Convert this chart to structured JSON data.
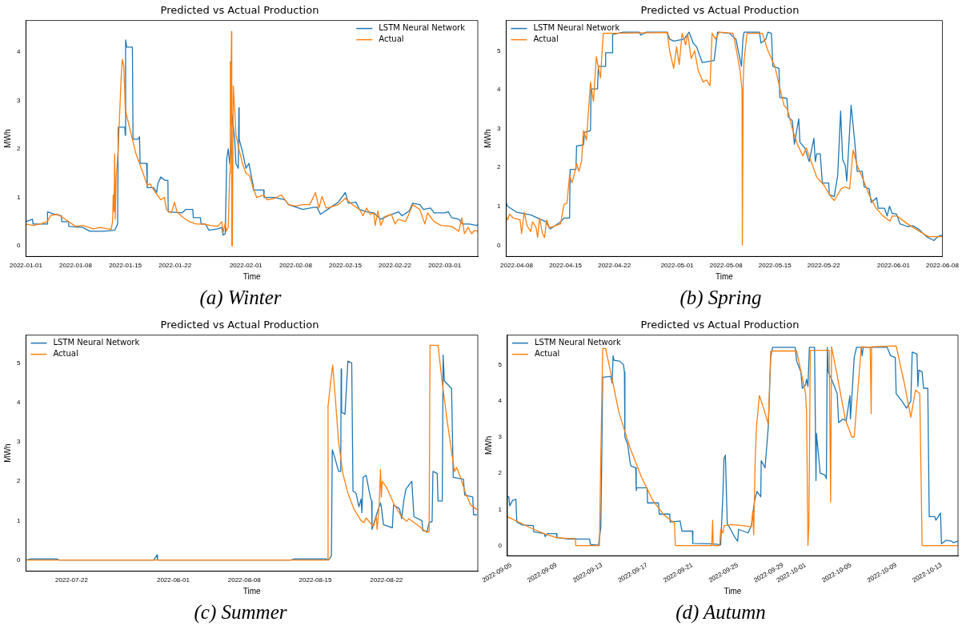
{
  "chart_data": [
    {
      "type": "line",
      "title": "Predicted vs Actual Production",
      "xlabel": "Time",
      "ylabel": "MWh",
      "legend": "top right",
      "annotations": [
        "(a) Winter"
      ],
      "xlim": [
        "2022-01-01",
        "2022-03-05T16:00"
      ],
      "ylim": [
        -0.22,
        4.65
      ],
      "yticks": [
        0,
        1,
        2,
        3,
        4
      ],
      "xticks": [
        "2022-01-01",
        "2022-01-08",
        "2022-01-15",
        "2022-01-22",
        "2022-02-01",
        "2022-02-08",
        "2022-02-15",
        "2022-02-22",
        "2022-03-01"
      ],
      "series": [
        {
          "name": "LSTM Neural Network",
          "color": "#1f77b4",
          "x": [
            "2022-01-01",
            "2022-01-01T22:00",
            "2022-01-02",
            "2022-01-04",
            "2022-01-04T01:00",
            "2022-01-05",
            "2022-01-06",
            "2022-01-06T01:00",
            "2022-01-07",
            "2022-01-07T01:00",
            "2022-01-09",
            "2022-01-10",
            "2022-01-12",
            "2022-01-13T12:00",
            "2022-01-13T22:00",
            "2022-01-14",
            "2022-01-14T22:00",
            "2022-01-15",
            "2022-01-15T01:00",
            "2022-01-15T05:00",
            "2022-01-16",
            "2022-01-16T02:00",
            "2022-01-16T19:00",
            "2022-01-17",
            "2022-01-17T02:00",
            "2022-01-18",
            "2022-01-18T02:00",
            "2022-01-19",
            "2022-01-19T10:00",
            "2022-01-19T14:00",
            "2022-01-20",
            "2022-01-20T14:00",
            "2022-01-21",
            "2022-01-21T01:00",
            "2022-01-23",
            "2022-01-23T12:00",
            "2022-01-24T12:00",
            "2022-01-24T14:00",
            "2022-01-25T14:00",
            "2022-01-25T16:00",
            "2022-01-26T07:00",
            "2022-01-26T19:00",
            "2022-01-28",
            "2022-01-28T14:00",
            "2022-01-28T19:00",
            "2022-01-29T02:00",
            "2022-01-29T07:00",
            "2022-01-29T12:00",
            "2022-01-29T17:00",
            "2022-01-29T22:00",
            "2022-01-30T01:00",
            "2022-01-30T10:00",
            "2022-01-30T14:00",
            "2022-01-30T22:00",
            "2022-01-31",
            "2022-01-31T01:00",
            "2022-01-31T12:00",
            "2022-02-01",
            "2022-02-01T10:00",
            "2022-02-02",
            "2022-02-02T01:00",
            "2022-02-03T12:00",
            "2022-02-03T13:00",
            "2022-02-05",
            "2022-02-06T12:00",
            "2022-02-07",
            "2022-02-08",
            "2022-02-09",
            "2022-02-10",
            "2022-02-11",
            "2022-02-11T12:00",
            "2022-02-13",
            "2022-02-14",
            "2022-02-15",
            "2022-02-15T10:00",
            "2022-02-16T12:00",
            "2022-02-17",
            "2022-02-18",
            "2022-02-19",
            "2022-02-20",
            "2022-02-21",
            "2022-02-22T12:00",
            "2022-02-23",
            "2022-02-24",
            "2022-02-24T12:00",
            "2022-02-25T12:00",
            "2022-02-26",
            "2022-02-27",
            "2022-02-27T12:00",
            "2022-03-01",
            "2022-03-01T12:00",
            "2022-03-02",
            "2022-03-03",
            "2022-03-03T12:00",
            "2022-03-04T12:00",
            "2022-03-05T12:00",
            "2022-03-05T16:00"
          ],
          "values": [
            0.5,
            0.55,
            0.45,
            0.45,
            0.7,
            0.65,
            0.62,
            0.5,
            0.5,
            0.4,
            0.38,
            0.3,
            0.3,
            0.32,
            0.45,
            2.45,
            2.45,
            2.28,
            4.25,
            4.1,
            4.1,
            2.2,
            2.2,
            2.25,
            1.7,
            1.7,
            1.2,
            1.2,
            1.1,
            1.28,
            1.42,
            1.35,
            1.35,
            0.7,
            0.68,
            0.75,
            0.75,
            0.58,
            0.58,
            0.45,
            0.45,
            0.32,
            0.35,
            0.38,
            0.22,
            0.25,
            1.8,
            2.0,
            1.7,
            2.0,
            2.7,
            2.2,
            1.7,
            1.6,
            2.85,
            2.2,
            1.95,
            1.6,
            1.7,
            1.25,
            1.15,
            1.15,
            1.0,
            1.0,
            0.95,
            0.85,
            0.8,
            0.75,
            0.78,
            0.8,
            0.65,
            0.8,
            0.9,
            1.1,
            0.88,
            0.9,
            0.75,
            0.7,
            0.68,
            0.55,
            0.62,
            0.7,
            0.62,
            0.72,
            0.88,
            0.85,
            0.75,
            0.78,
            0.68,
            0.68,
            0.7,
            0.58,
            0.55,
            0.45,
            0.45,
            0.42,
            0.44
          ]
        },
        {
          "name": "Actual",
          "color": "#ff7f0e",
          "x": [
            "2022-01-01",
            "2022-01-02",
            "2022-01-03",
            "2022-01-04",
            "2022-01-04T12:00",
            "2022-01-05T12:00",
            "2022-01-07",
            "2022-01-08",
            "2022-01-09",
            "2022-01-10T12:00",
            "2022-01-11T12:00",
            "2022-01-12T12:00",
            "2022-01-13",
            "2022-01-13T05:00",
            "2022-01-13T07:00",
            "2022-01-13T10:00",
            "2022-01-13T12:00",
            "2022-01-13T14:00",
            "2022-01-13T17:00",
            "2022-01-14",
            "2022-01-14T10:00",
            "2022-01-14T14:00",
            "2022-01-14T19:00",
            "2022-01-15",
            "2022-01-15T12:00",
            "2022-01-16T12:00",
            "2022-01-17T12:00",
            "2022-01-18T02:00",
            "2022-01-18T12:00",
            "2022-01-19",
            "2022-01-20",
            "2022-01-20T12:00",
            "2022-01-20T19:00",
            "2022-01-21T12:00",
            "2022-01-21T22:00",
            "2022-01-22T07:00",
            "2022-01-23",
            "2022-01-24",
            "2022-01-25",
            "2022-01-26",
            "2022-01-27",
            "2022-01-28",
            "2022-01-28T14:00",
            "2022-01-28T19:00",
            "2022-01-29T02:00",
            "2022-01-29T05:00",
            "2022-01-29T12:00",
            "2022-01-29T17:00",
            "2022-01-29T19:00",
            "2022-01-29T20:00",
            "2022-01-29T23:00",
            "2022-01-30",
            "2022-01-30T02:00",
            "2022-01-30T05:00",
            "2022-01-30T10:00",
            "2022-01-30T14:00",
            "2022-01-31",
            "2022-01-31T12:00",
            "2022-02-01",
            "2022-02-01T12:00",
            "2022-02-02",
            "2022-02-02T12:00",
            "2022-02-03T12:00",
            "2022-02-04",
            "2022-02-05",
            "2022-02-06",
            "2022-02-07",
            "2022-02-08",
            "2022-02-09",
            "2022-02-10",
            "2022-02-10T19:00",
            "2022-02-11T07:00",
            "2022-02-11T17:00",
            "2022-02-12T07:00",
            "2022-02-13",
            "2022-02-14",
            "2022-02-15",
            "2022-02-16",
            "2022-02-17",
            "2022-02-17T12:00",
            "2022-02-18",
            "2022-02-18T12:00",
            "2022-02-19",
            "2022-02-19T05:00",
            "2022-02-19T14:00",
            "2022-02-20",
            "2022-02-20T12:00",
            "2022-02-21T12:00",
            "2022-02-22",
            "2022-02-22T12:00",
            "2022-02-23T12:00",
            "2022-02-24T12:00",
            "2022-02-25T12:00",
            "2022-02-26T05:00",
            "2022-02-26T14:00",
            "2022-02-27T12:00",
            "2022-02-28T12:00",
            "2022-03-02",
            "2022-03-03",
            "2022-03-03T10:00",
            "2022-03-03T19:00",
            "2022-03-04T07:00",
            "2022-03-04T19:00",
            "2022-03-05T05:00",
            "2022-03-05T16:00"
          ],
          "values": [
            0.45,
            0.42,
            0.45,
            0.5,
            0.63,
            0.65,
            0.5,
            0.4,
            0.42,
            0.35,
            0.38,
            0.35,
            0.34,
            0.5,
            1.05,
            0.7,
            1.9,
            0.55,
            1.4,
            2.0,
            3.5,
            3.85,
            3.7,
            2.8,
            2.5,
            1.9,
            1.5,
            1.25,
            1.28,
            1.15,
            0.95,
            1.0,
            0.75,
            0.68,
            0.9,
            0.7,
            0.6,
            0.5,
            0.45,
            0.45,
            0.42,
            0.4,
            0.5,
            0.28,
            0.48,
            0.3,
            0.38,
            1.5,
            3.8,
            2.5,
            4.42,
            0,
            0,
            3.3,
            2.8,
            2.3,
            2.0,
            1.7,
            1.5,
            1.45,
            1.2,
            1.0,
            1.05,
            0.95,
            0.98,
            1.05,
            0.85,
            0.82,
            0.85,
            0.85,
            1.1,
            0.78,
            1.02,
            0.78,
            0.8,
            0.85,
            0.98,
            0.85,
            0.75,
            0.62,
            0.78,
            0.65,
            0.68,
            0.42,
            0.72,
            0.42,
            0.6,
            0.65,
            0.45,
            0.55,
            0.5,
            0.85,
            0.75,
            0.45,
            0.68,
            0.5,
            0.42,
            0.4,
            0.3,
            0.58,
            0.25,
            0.38,
            0.25,
            0.32,
            0.3
          ]
        }
      ]
    },
    {
      "type": "line",
      "title": "Predicted vs Actual Production",
      "xlabel": "Time",
      "ylabel": "MWh",
      "legend": "top left",
      "annotations": [
        "(b) Spring"
      ],
      "xlim": [
        "2022-04-06T12:00",
        "2022-06-08"
      ],
      "ylim": [
        -0.29,
        5.78
      ],
      "yticks": [
        0,
        1,
        2,
        3,
        4,
        5
      ],
      "xticks": [
        "2022-04-08",
        "2022-04-15",
        "2022-04-22",
        "2022-05-01",
        "2022-05-08",
        "2022-05-15",
        "2022-05-22",
        "2022-06-01",
        "2022-06-08"
      ],
      "series": [
        {
          "name": "LSTM Neural Network",
          "color": "#1f77b4",
          "x": [
            "2022-04-06T12:00",
            "2022-04-06T17:00",
            "2022-04-08",
            "2022-04-10",
            "2022-04-12T05:00",
            "2022-04-12T19:00",
            "2022-04-14T07:00",
            "2022-04-14T19:00",
            "2022-04-15T14:00",
            "2022-04-15T16:00",
            "2022-04-16T12:00",
            "2022-04-16T14:00",
            "2022-04-17T14:00",
            "2022-04-17T17:00",
            "2022-04-18T14:00",
            "2022-04-18T16:00",
            "2022-04-19T14:00",
            "2022-04-19T17:00",
            "2022-04-20T17:00",
            "2022-04-20T18:00",
            "2022-04-21T17:00",
            "2022-04-21T18:00",
            "2022-04-22T12:00",
            "2022-04-23T07:00",
            "2022-04-25T14:00",
            "2022-04-25T19:00",
            "2022-04-26T14:00",
            "2022-04-29T14:00",
            "2022-04-29T22:00",
            "2022-04-30T12:00",
            "2022-05-02",
            "2022-05-02T17:00",
            "2022-05-03T07:00",
            "2022-05-03T19:00",
            "2022-05-04T14:00",
            "2022-05-06T07:00",
            "2022-05-06T19:00",
            "2022-05-08T12:00",
            "2022-05-09T10:00",
            "2022-05-10T05:00",
            "2022-05-10T10:00",
            "2022-05-10T14:00",
            "2022-05-12T19:00",
            "2022-05-13",
            "2022-05-13T17:00",
            "2022-05-14",
            "2022-05-14T12:00",
            "2022-05-14T17:00",
            "2022-05-15T14:00",
            "2022-05-15T17:00",
            "2022-05-16T17:00",
            "2022-05-16T22:00",
            "2022-05-17T12:00",
            "2022-05-17T19:00",
            "2022-05-18T10:00",
            "2022-05-18T14:00",
            "2022-05-19T07:00",
            "2022-05-19T22:00",
            "2022-05-20T14:00",
            "2022-05-20T19:00",
            "2022-05-21",
            "2022-05-21T12:00",
            "2022-05-21T19:00",
            "2022-05-22T17:00",
            "2022-05-22T19:00",
            "2022-05-23T12:00",
            "2022-05-24",
            "2022-05-24T10:00",
            "2022-05-24T17:00",
            "2022-05-25T02:00",
            "2022-05-25T07:00",
            "2022-05-25T22:00",
            "2022-05-26T10:00",
            "2022-05-26T19:00",
            "2022-05-27T12:00",
            "2022-05-27T19:00",
            "2022-05-28T12:00",
            "2022-05-28T19:00",
            "2022-05-29T14:00",
            "2022-05-29T19:00",
            "2022-05-30T17:00",
            "2022-05-31T02:00",
            "2022-05-31T10:00",
            "2022-05-31T19:00",
            "2022-06-01T10:00",
            "2022-06-01T22:00",
            "2022-06-03",
            "2022-06-03T19:00",
            "2022-06-04T17:00",
            "2022-06-05T17:00",
            "2022-06-06T19:00",
            "2022-06-07T05:00",
            "2022-06-07T17:00",
            "2022-06-08"
          ],
          "values": [
            1.1,
            1.0,
            0.85,
            0.78,
            0.6,
            0.42,
            0.6,
            0.7,
            0.7,
            1.95,
            1.95,
            2.55,
            2.58,
            2.9,
            2.95,
            4.02,
            4.02,
            4.6,
            4.6,
            4.95,
            4.95,
            5.42,
            5.45,
            5.48,
            5.48,
            5.4,
            5.48,
            5.48,
            5.3,
            5.25,
            5.3,
            5.48,
            5.2,
            5.1,
            4.7,
            4.75,
            5.48,
            5.45,
            5.3,
            4.6,
            5.3,
            5.48,
            5.48,
            5.2,
            5.3,
            5.48,
            5.45,
            4.6,
            4.55,
            3.8,
            3.78,
            3.3,
            3.2,
            2.6,
            3.25,
            2.65,
            2.5,
            2.15,
            2.75,
            2.15,
            2.35,
            2.35,
            1.6,
            1.6,
            1.3,
            1.25,
            1.8,
            3.45,
            2.2,
            2.05,
            1.65,
            3.6,
            2.7,
            1.9,
            1.9,
            1.5,
            1.45,
            1.1,
            1.22,
            0.95,
            0.95,
            0.75,
            1.0,
            0.82,
            0.8,
            0.55,
            0.48,
            0.5,
            0.4,
            0.22,
            0.12,
            0.2,
            0.25,
            0.25
          ]
        },
        {
          "name": "Actual",
          "color": "#ff7f0e",
          "x": [
            "2022-04-06T12:00",
            "2022-04-06T17:00",
            "2022-04-07",
            "2022-04-07T12:00",
            "2022-04-08T12:00",
            "2022-04-08T17:00",
            "2022-04-09T02:00",
            "2022-04-09T12:00",
            "2022-04-10",
            "2022-04-10T07:00",
            "2022-04-10T19:00",
            "2022-04-11",
            "2022-04-11T07:00",
            "2022-04-11T17:00",
            "2022-04-12",
            "2022-04-12T07:00",
            "2022-04-12T17:00",
            "2022-04-13T12:00",
            "2022-04-14T07:00",
            "2022-04-14T19:00",
            "2022-04-15T05:00",
            "2022-04-15T14:00",
            "2022-04-15T22:00",
            "2022-04-16T07:00",
            "2022-04-16T14:00",
            "2022-04-16T22:00",
            "2022-04-17T07:00",
            "2022-04-17T14:00",
            "2022-04-18",
            "2022-04-18T14:00",
            "2022-04-19",
            "2022-04-19T10:00",
            "2022-04-20",
            "2022-04-20T10:00",
            "2022-04-29T14:00",
            "2022-04-29T22:00",
            "2022-04-30T12:00",
            "2022-04-30T22:00",
            "2022-05-01T07:00",
            "2022-05-01T17:00",
            "2022-05-02T05:00",
            "2022-05-02T12:00",
            "2022-05-03",
            "2022-05-03T12:00",
            "2022-05-04",
            "2022-05-04T17:00",
            "2022-05-05T05:00",
            "2022-05-05T17:00",
            "2022-05-06",
            "2022-05-06T12:00",
            "2022-05-07",
            "2022-05-09",
            "2022-05-09T12:00",
            "2022-05-10",
            "2022-05-10T07:00",
            "2022-05-10T08:00",
            "2022-05-10T11:00",
            "2022-05-10T14:00",
            "2022-05-11",
            "2022-05-13T05:00",
            "2022-05-14",
            "2022-05-15",
            "2022-05-15T12:00",
            "2022-05-16T07:00",
            "2022-05-16T19:00",
            "2022-05-17T12:00",
            "2022-05-18T05:00",
            "2022-05-19",
            "2022-05-19T12:00",
            "2022-05-20T07:00",
            "2022-05-21",
            "2022-05-22",
            "2022-05-23",
            "2022-05-23T12:00",
            "2022-05-24T12:00",
            "2022-05-25",
            "2022-05-25T17:00",
            "2022-05-26T05:00",
            "2022-05-26T19:00",
            "2022-05-27T12:00",
            "2022-05-28T12:00",
            "2022-05-29T12:00",
            "2022-05-30T12:00",
            "2022-05-31T12:00",
            "2022-05-31T19:00",
            "2022-06-01T12:00",
            "2022-06-03",
            "2022-06-04T12:00",
            "2022-06-06",
            "2022-06-08"
          ],
          "values": [
            0.75,
            0.65,
            0.8,
            0.7,
            0.65,
            0.3,
            0.85,
            0.5,
            0.35,
            0.6,
            0.45,
            0.2,
            0.7,
            0.3,
            0.2,
            0.65,
            0.45,
            0.5,
            0.55,
            1.05,
            1.08,
            1.8,
            1.6,
            1.85,
            2.1,
            1.9,
            2.15,
            2.95,
            2.7,
            4.2,
            3.7,
            4.85,
            4.3,
            5.45,
            5.47,
            5.0,
            4.55,
            5.1,
            4.65,
            5.45,
            5.15,
            5.45,
            4.8,
            5.0,
            4.5,
            4.2,
            4.25,
            4.1,
            5.45,
            5.3,
            5.48,
            5.45,
            5.0,
            4.5,
            4.0,
            0,
            4.2,
            4.75,
            5.45,
            5.45,
            5.0,
            4.6,
            4.2,
            3.6,
            3.5,
            3.0,
            2.6,
            2.3,
            2.5,
            2.1,
            1.75,
            1.55,
            1.25,
            1.15,
            1.45,
            1.5,
            1.45,
            2.45,
            2.05,
            1.75,
            1.3,
            0.95,
            0.75,
            0.62,
            0.75,
            0.75,
            0.55,
            0.38,
            0.22,
            0.22
          ]
        }
      ]
    },
    {
      "type": "line",
      "title": "Predicted vs Actual Production",
      "xlabel": "Time",
      "ylabel": "MWh",
      "legend": "top left",
      "annotations": [
        "(c) Summer"
      ],
      "xlim": [
        "2022-07-17T12:00",
        "2022-08-31"
      ],
      "ylim": [
        -0.28,
        5.71
      ],
      "yticks": [
        0,
        1,
        2,
        3,
        4,
        5
      ],
      "xticks": [
        "2022-07-22",
        "2022-08-01",
        "2022-08-08",
        "2022-08-15",
        "2022-08-22"
      ],
      "series": [
        {
          "name": "LSTM Neural Network",
          "color": "#1f77b4",
          "x": [
            "2022-07-17T12:00",
            "2022-07-18",
            "2022-07-20T12:00",
            "2022-07-20T19:00",
            "2022-07-30T02:00",
            "2022-07-30T10:00",
            "2022-07-30T11:00",
            "2022-08-12T14:00",
            "2022-08-13",
            "2022-08-16",
            "2022-08-16T07:00",
            "2022-08-16T14:00",
            "2022-08-16T16:00",
            "2022-08-16T22:00",
            "2022-08-17T07:00",
            "2022-08-17T12:00",
            "2022-08-17T13:00",
            "2022-08-17T14:00",
            "2022-08-17T22:00",
            "2022-08-18T05:00",
            "2022-08-18T14:00",
            "2022-08-18T17:00",
            "2022-08-19",
            "2022-08-19T07:00",
            "2022-08-19T12:00",
            "2022-08-19T14:00",
            "2022-08-19T17:00",
            "2022-08-20",
            "2022-08-20T10:00",
            "2022-08-20T13:00",
            "2022-08-20T14:00",
            "2022-08-21T02:00",
            "2022-08-21T10:00",
            "2022-08-21T12:00",
            "2022-08-21T17:00",
            "2022-08-22T14:00",
            "2022-08-22T17:00",
            "2022-08-23T07:00",
            "2022-08-23T12:00",
            "2022-08-23T17:00",
            "2022-08-23T22:00",
            "2022-08-24T12:00",
            "2022-08-24T17:00",
            "2022-08-25T12:00",
            "2022-08-25T14:00",
            "2022-08-26",
            "2022-08-26T05:00",
            "2022-08-26T12:00",
            "2022-08-26T14:00",
            "2022-08-27",
            "2022-08-27T02:00",
            "2022-08-27T12:00",
            "2022-08-27T14:00",
            "2022-08-27T17:00",
            "2022-08-28T10:00",
            "2022-08-28T14:00",
            "2022-08-29T14:00",
            "2022-08-29T17:00",
            "2022-08-30T12:00",
            "2022-08-30T14:00",
            "2022-08-30T22:00"
          ],
          "values": [
            0,
            0.03,
            0.03,
            0,
            0,
            0.13,
            0,
            0,
            0.03,
            0.03,
            0,
            0.1,
            2.8,
            2.6,
            2.25,
            2.25,
            4.85,
            3.75,
            3.7,
            5.05,
            5.0,
            1.75,
            1.7,
            1.35,
            1.55,
            1.2,
            2.1,
            2.15,
            1.6,
            1.5,
            0.78,
            1.2,
            1.45,
            1.35,
            0.9,
            0.82,
            1.4,
            1.3,
            1.05,
            1.5,
            1.8,
            2.0,
            1.1,
            1.0,
            0.75,
            0.72,
            0.95,
            0.98,
            2.25,
            2.2,
            1.5,
            1.5,
            5.2,
            4.55,
            4.35,
            2.1,
            2.05,
            1.65,
            1.6,
            1.15,
            1.15
          ]
        },
        {
          "name": "Actual",
          "color": "#ff7f0e",
          "x": [
            "2022-07-17T12:00",
            "2022-08-16T05:00",
            "2022-08-16T06:00",
            "2022-08-16T12:00",
            "2022-08-16T17:00",
            "2022-08-17",
            "2022-08-17T07:00",
            "2022-08-17T17:00",
            "2022-08-18T05:00",
            "2022-08-18T19:00",
            "2022-08-19T12:00",
            "2022-08-19T19:00",
            "2022-08-20",
            "2022-08-20T17:00",
            "2022-08-21",
            "2022-08-21T02:00",
            "2022-08-21T07:00",
            "2022-08-21T10:00",
            "2022-08-21T12:00",
            "2022-08-21T14:00",
            "2022-08-22",
            "2022-08-22T19:00",
            "2022-08-23T12:00",
            "2022-08-24",
            "2022-08-24T05:00",
            "2022-08-25",
            "2022-08-26",
            "2022-08-26T05:00",
            "2022-08-26T07:00",
            "2022-08-27T02:00",
            "2022-08-27T12:00",
            "2022-08-28",
            "2022-08-28T12:00",
            "2022-08-28T17:00",
            "2022-08-28T22:00",
            "2022-08-29T07:00",
            "2022-08-29T19:00",
            "2022-08-30T07:00",
            "2022-08-30T22:00"
          ],
          "values": [
            0,
            0,
            3.9,
            4.5,
            4.95,
            4.0,
            3.0,
            2.2,
            1.7,
            1.3,
            1.0,
            0.95,
            1.07,
            0.85,
            1.1,
            0.78,
            1.4,
            2.3,
            1.6,
            2.0,
            1.85,
            1.4,
            1.1,
            0.98,
            1.05,
            0.9,
            0.7,
            0.72,
            5.45,
            5.45,
            4.5,
            3.5,
            2.6,
            2.25,
            2.35,
            2.1,
            1.7,
            1.4,
            1.28
          ]
        }
      ]
    },
    {
      "type": "line",
      "title": "Predicted vs Actual Production",
      "xlabel": "Time",
      "ylabel": "MWh",
      "legend": "top left",
      "annotations": [
        "(d) Autumn"
      ],
      "xlim": [
        "2022-09-04T16:00",
        "2022-10-14T11:00"
      ],
      "ylim": [
        -0.28,
        5.82
      ],
      "yticks": [
        0,
        1,
        2,
        3,
        4,
        5
      ],
      "xticks": [
        "2022-09-05",
        "2022-09-09",
        "2022-09-13",
        "2022-09-17",
        "2022-09-21",
        "2022-09-25",
        "2022-09-29",
        "2022-10-01",
        "2022-10-05",
        "2022-10-09",
        "2022-10-13"
      ],
      "series": [
        {
          "name": "LSTM Neural Network",
          "color": "#1f77b4",
          "x": [
            "2022-09-04T16:00",
            "2022-09-04T19:00",
            "2022-09-04T21:00",
            "2022-09-05T03:00",
            "2022-09-05T10:00",
            "2022-09-05T12:00",
            "2022-09-06",
            "2022-09-06T23:00",
            "2022-09-07",
            "2022-09-07T22:00",
            "2022-09-08",
            "2022-09-08T05:00",
            "2022-09-09",
            "2022-09-09T01:00",
            "2022-09-10T02:00",
            "2022-09-11T22:00",
            "2022-09-12",
            "2022-09-12T17:00",
            "2022-09-12T22:00",
            "2022-09-13",
            "2022-09-13T02:00",
            "2022-09-13T19:00",
            "2022-09-13T22:00",
            "2022-09-14",
            "2022-09-14T02:00",
            "2022-09-14T14:00",
            "2022-09-14T22:00",
            "2022-09-15",
            "2022-09-15T01:00",
            "2022-09-15T07:00",
            "2022-09-15T12:00",
            "2022-09-15T14:00",
            "2022-09-16",
            "2022-09-16T01:00",
            "2022-09-16T02:00",
            "2022-09-17",
            "2022-09-17T01:00",
            "2022-09-18",
            "2022-09-18T02:00",
            "2022-09-19",
            "2022-09-19T01:00",
            "2022-09-19T22:00",
            "2022-09-20T02:00",
            "2022-09-21",
            "2022-09-21T01:00",
            "2022-09-22T19:00",
            "2022-09-23T07:00",
            "2022-09-23T12:00",
            "2022-09-23T17:00",
            "2022-09-23T19:00",
            "2022-09-23T22:00",
            "2022-09-24T02:00",
            "2022-09-24T07:00",
            "2022-09-24T17:00",
            "2022-09-25",
            "2022-09-25T02:00",
            "2022-09-25T22:00",
            "2022-09-26T05:00",
            "2022-09-26T12:00",
            "2022-09-26T17:00",
            "2022-09-27T01:00",
            "2022-09-27T02:00",
            "2022-09-27T10:00",
            "2022-09-27T17:00",
            "2022-09-27T22:00",
            "2022-09-28T02:00",
            "2022-09-30T02:00",
            "2022-09-30T05:00",
            "2022-09-30T14:00",
            "2022-09-30T17:00",
            "2022-10-01",
            "2022-10-01T02:00",
            "2022-10-01T05:00",
            "2022-10-01T08:00",
            "2022-10-01T19:00",
            "2022-10-01T22:00",
            "2022-10-01T23:00",
            "2022-10-02T07:00",
            "2022-10-02T17:00",
            "2022-10-02T20:00",
            "2022-10-02T22:00",
            "2022-10-03",
            "2022-10-03T07:00",
            "2022-10-03T19:00",
            "2022-10-03T22:00",
            "2022-10-04T07:00",
            "2022-10-04T14:00",
            "2022-10-04T22:00",
            "2022-10-04T23:00",
            "2022-10-05T02:00",
            "2022-10-05T07:00",
            "2022-10-05T12:00",
            "2022-10-05T22:00",
            "2022-10-06",
            "2022-10-06T02:00",
            "2022-10-08T05:00",
            "2022-10-08T12:00",
            "2022-10-08T22:00",
            "2022-10-09",
            "2022-10-09T12:00",
            "2022-10-09T22:00",
            "2022-10-10T07:00",
            "2022-10-10T10:00",
            "2022-10-10T20:00",
            "2022-10-10T22:00",
            "2022-10-11",
            "2022-10-11T07:00",
            "2022-10-11T10:00",
            "2022-10-11T19:00",
            "2022-10-11T22:00",
            "2022-10-12T10:00",
            "2022-10-12T12:00",
            "2022-10-12T22:00",
            "2022-10-13",
            "2022-10-13T10:00",
            "2022-10-13T22:00",
            "2022-10-14T01:00",
            "2022-10-14T11:00"
          ],
          "values": [
            1.35,
            1.35,
            1.1,
            1.25,
            1.28,
            0.65,
            0.57,
            0.55,
            0.38,
            0.33,
            0.25,
            0.33,
            0.33,
            0.22,
            0.18,
            0.18,
            0.03,
            0.01,
            0.5,
            2.5,
            4.65,
            4.68,
            4.5,
            5.25,
            5.12,
            5.1,
            5.0,
            4.8,
            3.0,
            2.8,
            2.3,
            2.2,
            2.15,
            1.52,
            1.6,
            1.6,
            1.18,
            1.18,
            0.87,
            0.87,
            0.65,
            0.68,
            0.4,
            0.4,
            0.06,
            0.05,
            0.03,
            0.02,
            1.5,
            2.4,
            2.5,
            0.6,
            0.5,
            0.25,
            0.12,
            0.45,
            0.35,
            0.55,
            1.25,
            1.5,
            1.35,
            2.35,
            2.15,
            3.3,
            5.2,
            5.48,
            5.48,
            5.1,
            4.8,
            4.35,
            4.45,
            4.6,
            4.4,
            5.48,
            5.48,
            1.8,
            3.1,
            2.0,
            1.95,
            1.85,
            5.48,
            4.8,
            4.6,
            4.2,
            3.4,
            3.5,
            3.45,
            4.15,
            3.5,
            4.1,
            5.2,
            5.48,
            5.48,
            5.25,
            5.48,
            5.48,
            5.25,
            5.2,
            4.2,
            4.0,
            3.8,
            4.0,
            5.35,
            5.3,
            4.4,
            4.85,
            4.8,
            4.35,
            4.35,
            0.8,
            0.8,
            0.7,
            0.9,
            0.05,
            0.15,
            0.12,
            0.08,
            0.12
          ]
        },
        {
          "name": "Actual",
          "color": "#ff7f0e",
          "x": [
            "2022-09-04T16:00",
            "2022-09-06",
            "2022-09-07",
            "2022-09-08",
            "2022-09-09",
            "2022-09-10",
            "2022-09-10T16:00",
            "2022-09-10T17:00",
            "2022-09-12T19:00",
            "2022-09-12T22:00",
            "2022-09-13T02:00",
            "2022-09-13T08:00",
            "2022-09-13T22:00",
            "2022-09-14T12:00",
            "2022-09-15T12:00",
            "2022-09-16T12:00",
            "2022-09-17T12:00",
            "2022-09-18T12:00",
            "2022-09-19T10:00",
            "2022-09-19T12:00",
            "2022-09-22T17:00",
            "2022-09-22T19:00",
            "2022-09-22T20:00",
            "2022-09-23T10:00",
            "2022-09-23T12:00",
            "2022-09-23T17:00",
            "2022-09-23T19:00",
            "2022-09-24T12:00",
            "2022-09-25T12:00",
            "2022-09-26T05:00",
            "2022-09-26T08:00",
            "2022-09-26T10:00",
            "2022-09-26T13:00",
            "2022-09-26T16:00",
            "2022-09-26T22:00",
            "2022-09-27T07:00",
            "2022-09-27T17:00",
            "2022-09-27T22:00",
            "2022-09-30T05:00",
            "2022-10-01",
            "2022-10-01T02:00",
            "2022-10-01T05:00",
            "2022-10-01T07:00",
            "2022-10-01T10:00",
            "2022-10-03T02:00",
            "2022-10-03T05:00",
            "2022-10-03T07:00",
            "2022-10-03T19:00",
            "2022-10-04T12:00",
            "2022-10-05T02:00",
            "2022-10-05T07:00",
            "2022-10-05T22:00",
            "2022-10-06T17:00",
            "2022-10-06T19:00",
            "2022-10-06T20:00",
            "2022-10-09",
            "2022-10-09T17:00",
            "2022-10-10T07:00",
            "2022-10-10T17:00",
            "2022-10-11T02:00",
            "2022-10-11T07:00",
            "2022-10-14T11:00"
          ],
          "values": [
            0.8,
            0.6,
            0.45,
            0.32,
            0.22,
            0.2,
            0.2,
            0,
            0,
            2.5,
            5.45,
            5.45,
            4.6,
            3.7,
            2.7,
            1.9,
            1.25,
            0.85,
            0.62,
            0,
            0,
            0.7,
            0,
            0,
            0.45,
            0.35,
            0.55,
            0.58,
            0.55,
            0.52,
            0.95,
            0.3,
            2.3,
            3.3,
            4.15,
            3.8,
            3.35,
            5.38,
            5.38,
            4.2,
            3.7,
            0,
            0.6,
            5.4,
            5.4,
            1.2,
            5.5,
            4.7,
            3.5,
            3.0,
            3.0,
            5.5,
            5.48,
            3.65,
            5.5,
            5.52,
            4.5,
            3.55,
            4.3,
            4.2,
            0,
            0
          ]
        }
      ]
    }
  ]
}
